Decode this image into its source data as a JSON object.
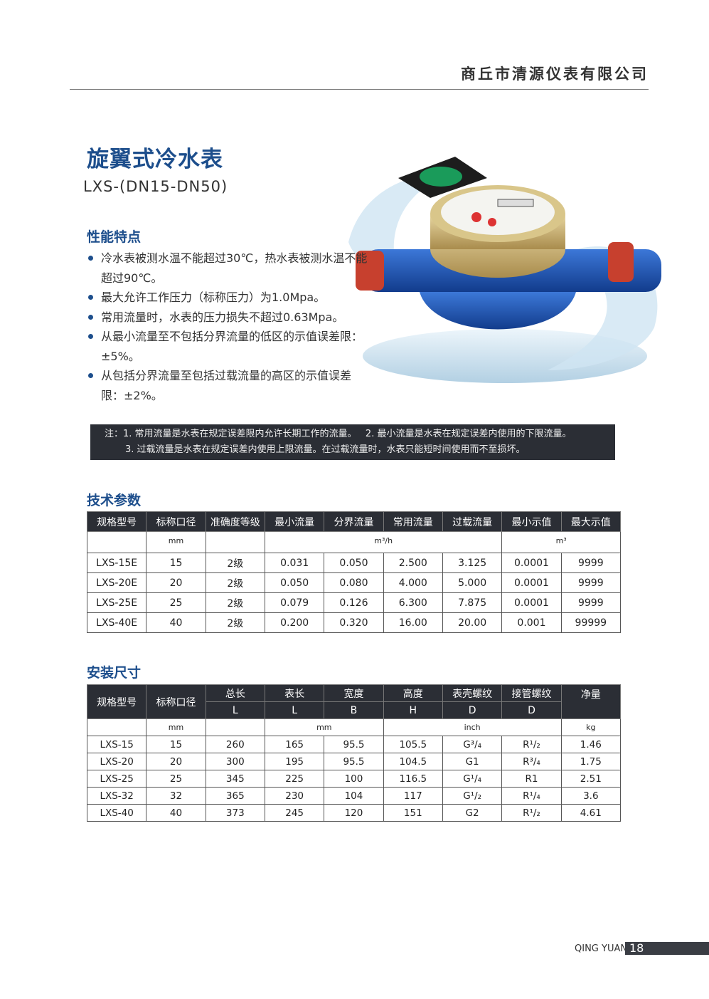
{
  "header": {
    "company": "商丘市清源仪表有限公司"
  },
  "product": {
    "title": "旋翼式冷水表",
    "model": "LXS-(DN15-DN50)"
  },
  "features": {
    "heading": "性能特点",
    "items": [
      "冷水表被测水温不能超过30℃，热水表被测水温不能超过90℃。",
      "最大允许工作压力（标称压力）为1.0Mpa。",
      "常用流量时，水表的压力损失不超过0.63Mpa。",
      "从最小流量至不包括分界流量的低区的示值误差限：±5%。",
      "从包括分界流量至包括过载流量的高区的示值误差限：±2%。"
    ]
  },
  "note": {
    "line1": "注：1. 常用流量是水表在规定误差限内允许长期工作的流量。   2. 最小流量是水表在规定误差内使用的下限流量。",
    "line2": "3. 过载流量是水表在规定误差内使用上限流量。在过载流量时，水表只能短时间使用而不至损坏。"
  },
  "tech": {
    "heading": "技术参数",
    "headers": [
      "规格型号",
      "标称口径",
      "准确度等级",
      "最小流量",
      "分界流量",
      "常用流量",
      "过载流量",
      "最小示值",
      "最大示值"
    ],
    "units": {
      "diameter": "mm",
      "flow": "m³/h",
      "reading": "m³"
    },
    "rows": [
      [
        "LXS-15E",
        "15",
        "2级",
        "0.031",
        "0.050",
        "2.500",
        "3.125",
        "0.0001",
        "9999"
      ],
      [
        "LXS-20E",
        "20",
        "2级",
        "0.050",
        "0.080",
        "4.000",
        "5.000",
        "0.0001",
        "9999"
      ],
      [
        "LXS-25E",
        "25",
        "2级",
        "0.079",
        "0.126",
        "6.300",
        "7.875",
        "0.0001",
        "9999"
      ],
      [
        "LXS-40E",
        "40",
        "2级",
        "0.200",
        "0.320",
        "16.00",
        "20.00",
        "0.001",
        "99999"
      ]
    ]
  },
  "install": {
    "heading": "安装尺寸",
    "headers": [
      "规格型号",
      "标称口径",
      "总长",
      "表长",
      "宽度",
      "高度",
      "表壳螺纹",
      "接管螺纹",
      "净量"
    ],
    "subheaders": [
      "L",
      "L",
      "B",
      "H",
      "D",
      "D"
    ],
    "units": {
      "diameter": "mm",
      "length": "mm",
      "thread": "inch",
      "weight": "kg"
    },
    "rows": [
      [
        "LXS-15",
        "15",
        "260",
        "165",
        "95.5",
        "105.5",
        "G³/₄",
        "R¹/₂",
        "1.46"
      ],
      [
        "LXS-20",
        "20",
        "300",
        "195",
        "95.5",
        "104.5",
        "G1",
        "R³/₄",
        "1.75"
      ],
      [
        "LXS-25",
        "25",
        "345",
        "225",
        "100",
        "116.5",
        "G¹/₄",
        "R1",
        "2.51"
      ],
      [
        "LXS-32",
        "32",
        "365",
        "230",
        "104",
        "117",
        "G¹/₂",
        "R¹/₄",
        "3.6"
      ],
      [
        "LXS-40",
        "40",
        "373",
        "245",
        "120",
        "151",
        "G2",
        "R¹/₂",
        "4.61"
      ]
    ]
  },
  "footer": {
    "brand": "QING YUAN",
    "page": "18"
  },
  "colors": {
    "accent": "#1d4e8c",
    "dark": "#2b2e35"
  }
}
